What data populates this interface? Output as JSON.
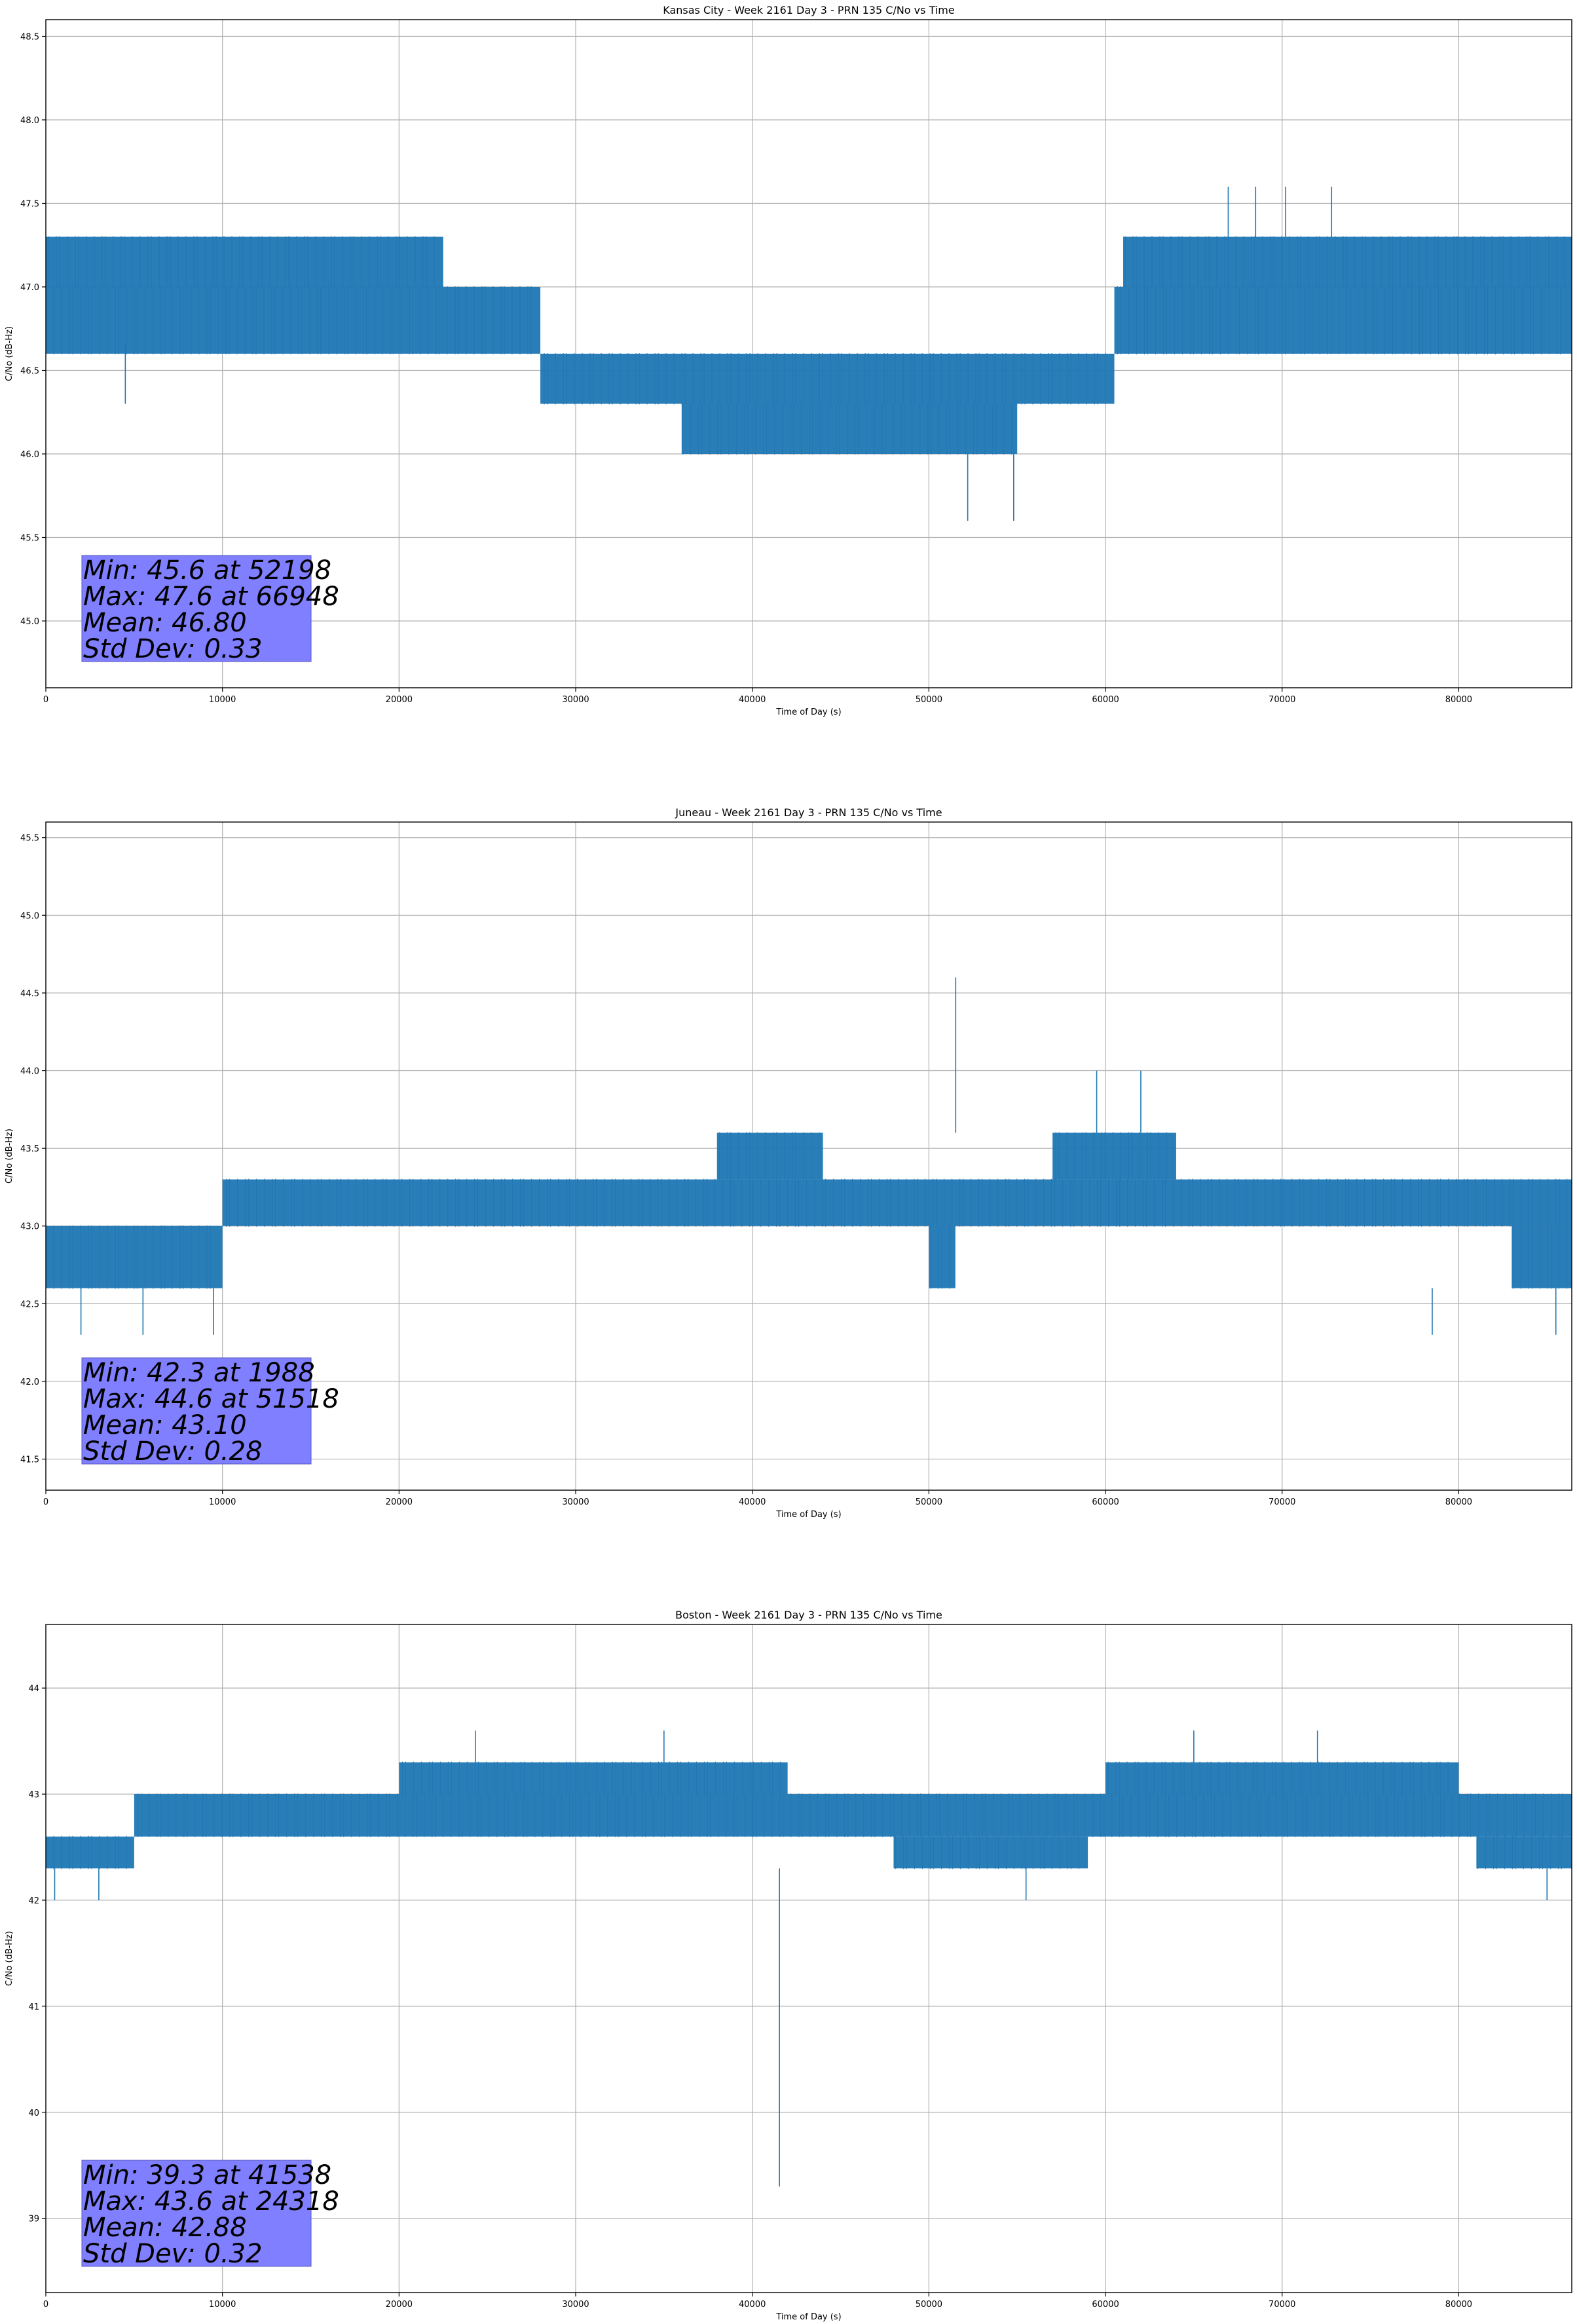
{
  "chart_data": [
    {
      "type": "line",
      "title": "Kansas City - Week 2161 Day 3 - PRN 135 C/No vs Time",
      "xlabel": "Time of Day (s)",
      "ylabel": "C/No (dB-Hz)",
      "xlim": [
        0,
        86400
      ],
      "ylim": [
        44.6,
        48.6
      ],
      "grid": true,
      "series_color": "#1f77b4",
      "xticks": [
        0,
        10000,
        20000,
        30000,
        40000,
        50000,
        60000,
        70000,
        80000
      ],
      "yticks": [
        45.0,
        45.5,
        46.0,
        46.5,
        47.0,
        47.5,
        48.0,
        48.5
      ],
      "ytick_decimals": 1,
      "segments": [
        {
          "x0": 0,
          "x1": 28000,
          "lo": 46.6,
          "hi": 47.0
        },
        {
          "x0": 28000,
          "x1": 60500,
          "lo": 46.3,
          "hi": 46.6
        },
        {
          "x0": 60500,
          "x1": 86400,
          "lo": 46.6,
          "hi": 47.0
        },
        {
          "x0": 0,
          "x1": 22500,
          "lo": 47.0,
          "hi": 47.3
        },
        {
          "x0": 61000,
          "x1": 86400,
          "lo": 47.0,
          "hi": 47.3
        },
        {
          "x0": 36000,
          "x1": 55000,
          "lo": 46.0,
          "hi": 46.3
        }
      ],
      "spikes": [
        {
          "x": 4500,
          "y": 46.3
        },
        {
          "x": 52198,
          "y": 45.6
        },
        {
          "x": 54800,
          "y": 45.6
        },
        {
          "x": 66948,
          "y": 47.6
        },
        {
          "x": 68500,
          "y": 47.6
        },
        {
          "x": 70200,
          "y": 47.6
        },
        {
          "x": 72800,
          "y": 47.6
        }
      ],
      "stats": {
        "min": "Min: 45.6 at 52198",
        "max": "Max: 47.6 at 66948",
        "mean": "Mean: 46.80",
        "std": "Std Dev: 0.33"
      }
    },
    {
      "type": "line",
      "title": "Juneau - Week 2161 Day 3 - PRN 135 C/No vs Time",
      "xlabel": "Time of Day (s)",
      "ylabel": "C/No (dB-Hz)",
      "xlim": [
        0,
        86400
      ],
      "ylim": [
        41.3,
        45.6
      ],
      "grid": true,
      "series_color": "#1f77b4",
      "xticks": [
        0,
        10000,
        20000,
        30000,
        40000,
        50000,
        60000,
        70000,
        80000
      ],
      "yticks": [
        41.5,
        42.0,
        42.5,
        43.0,
        43.5,
        44.0,
        44.5,
        45.0,
        45.5
      ],
      "ytick_decimals": 1,
      "segments": [
        {
          "x0": 0,
          "x1": 10000,
          "lo": 42.6,
          "hi": 43.0
        },
        {
          "x0": 10000,
          "x1": 86400,
          "lo": 43.0,
          "hi": 43.3
        },
        {
          "x0": 57000,
          "x1": 64000,
          "lo": 43.3,
          "hi": 43.6
        },
        {
          "x0": 38000,
          "x1": 44000,
          "lo": 43.3,
          "hi": 43.6
        },
        {
          "x0": 50000,
          "x1": 51500,
          "lo": 42.6,
          "hi": 43.0
        },
        {
          "x0": 83000,
          "x1": 86400,
          "lo": 42.6,
          "hi": 43.0
        }
      ],
      "spikes": [
        {
          "x": 1988,
          "y": 42.3
        },
        {
          "x": 5500,
          "y": 42.3
        },
        {
          "x": 9500,
          "y": 42.3
        },
        {
          "x": 51518,
          "y": 44.6
        },
        {
          "x": 59500,
          "y": 44.0
        },
        {
          "x": 62000,
          "y": 44.0
        },
        {
          "x": 78500,
          "y": 42.3
        },
        {
          "x": 85500,
          "y": 42.3
        }
      ],
      "stats": {
        "min": "Min: 42.3 at 1988",
        "max": "Max: 44.6 at 51518",
        "mean": "Mean: 43.10",
        "std": "Std Dev: 0.28"
      }
    },
    {
      "type": "line",
      "title": "Boston - Week 2161 Day 3 - PRN 135 C/No vs Time",
      "xlabel": "Time of Day (s)",
      "ylabel": "C/No (dB-Hz)",
      "xlim": [
        0,
        86400
      ],
      "ylim": [
        38.3,
        44.6
      ],
      "grid": true,
      "series_color": "#1f77b4",
      "xticks": [
        0,
        10000,
        20000,
        30000,
        40000,
        50000,
        60000,
        70000,
        80000
      ],
      "yticks": [
        39,
        40,
        41,
        42,
        43,
        44
      ],
      "ytick_decimals": 0,
      "segments": [
        {
          "x0": 0,
          "x1": 5000,
          "lo": 42.3,
          "hi": 42.6
        },
        {
          "x0": 5000,
          "x1": 86400,
          "lo": 42.6,
          "hi": 43.0
        },
        {
          "x0": 20000,
          "x1": 42000,
          "lo": 43.0,
          "hi": 43.3
        },
        {
          "x0": 60000,
          "x1": 80000,
          "lo": 43.0,
          "hi": 43.3
        },
        {
          "x0": 48000,
          "x1": 59000,
          "lo": 42.3,
          "hi": 42.6
        },
        {
          "x0": 81000,
          "x1": 86400,
          "lo": 42.3,
          "hi": 42.6
        }
      ],
      "spikes": [
        {
          "x": 500,
          "y": 42.0
        },
        {
          "x": 3000,
          "y": 42.0
        },
        {
          "x": 24318,
          "y": 43.6
        },
        {
          "x": 35000,
          "y": 43.6
        },
        {
          "x": 41538,
          "y": 39.3
        },
        {
          "x": 55500,
          "y": 42.0
        },
        {
          "x": 65000,
          "y": 43.6
        },
        {
          "x": 72000,
          "y": 43.6
        },
        {
          "x": 85000,
          "y": 42.0
        }
      ],
      "stats": {
        "min": "Min: 39.3 at 41538",
        "max": "Max: 43.6 at 24318",
        "mean": "Mean: 42.88",
        "std": "Std Dev: 0.32"
      }
    }
  ]
}
